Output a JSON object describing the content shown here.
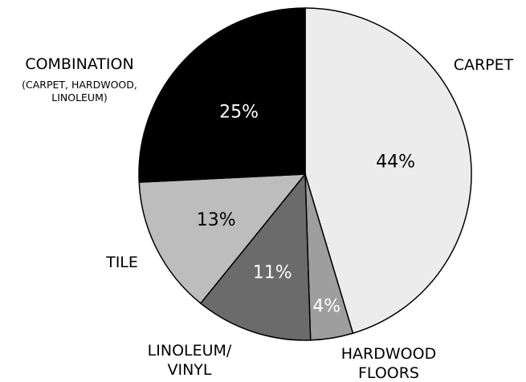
{
  "chart_data": {
    "type": "pie",
    "slices": [
      {
        "label": "CARPET",
        "value": 44,
        "display": "44%",
        "color": "#ececec",
        "text_color": "#000000"
      },
      {
        "label": "HARDWOOD FLOORS",
        "value": 4,
        "display": "4%",
        "color": "#9e9e9e",
        "text_color": "#ffffff"
      },
      {
        "label": "LINOLEUM/ VINYL",
        "value": 11,
        "display": "11%",
        "color": "#6b6b6b",
        "text_color": "#ffffff"
      },
      {
        "label": "TILE",
        "value": 13,
        "display": "13%",
        "color": "#bdbdbd",
        "text_color": "#000000"
      },
      {
        "label": "COMBINATION",
        "sublabel": "(CARPET, HARDWOOD, LINOLEUM)",
        "value": 25,
        "display": "25%",
        "color": "#000000",
        "text_color": "#ffffff"
      }
    ],
    "labels": {
      "carpet": "CARPET",
      "hardwood_line1": "HARDWOOD",
      "hardwood_line2": "FLOORS",
      "linoleum_line1": "LINOLEUM/",
      "linoleum_line2": "VINYL",
      "tile": "TILE",
      "combination": "COMBINATION",
      "combination_sub1": "(CARPET, HARDWOOD,",
      "combination_sub2": "LINOLEUM)"
    }
  }
}
